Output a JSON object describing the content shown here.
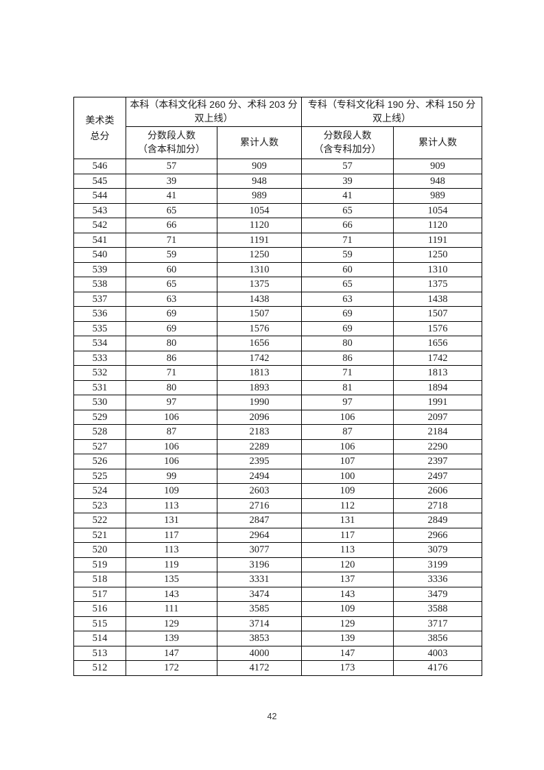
{
  "page": {
    "number": "42"
  },
  "table": {
    "header": {
      "category_line1": "美术类",
      "category_line2": "总分",
      "benke_group": "本科（本科文化科 260 分、术科 203 分双上线）",
      "zhuanke_group": "专科（专科文化科 190 分、术科 150 分双上线）",
      "segment_label": "分数段人数",
      "benke_segment_note": "（含本科加分）",
      "zhuanke_segment_note": "（含专科加分）",
      "cumulative_label": "累计人数"
    },
    "columns": [
      "美术类总分",
      "分数段人数（含本科加分）",
      "累计人数",
      "分数段人数（含专科加分）",
      "累计人数"
    ],
    "rows": [
      [
        546,
        57,
        909,
        57,
        909
      ],
      [
        545,
        39,
        948,
        39,
        948
      ],
      [
        544,
        41,
        989,
        41,
        989
      ],
      [
        543,
        65,
        1054,
        65,
        1054
      ],
      [
        542,
        66,
        1120,
        66,
        1120
      ],
      [
        541,
        71,
        1191,
        71,
        1191
      ],
      [
        540,
        59,
        1250,
        59,
        1250
      ],
      [
        539,
        60,
        1310,
        60,
        1310
      ],
      [
        538,
        65,
        1375,
        65,
        1375
      ],
      [
        537,
        63,
        1438,
        63,
        1438
      ],
      [
        536,
        69,
        1507,
        69,
        1507
      ],
      [
        535,
        69,
        1576,
        69,
        1576
      ],
      [
        534,
        80,
        1656,
        80,
        1656
      ],
      [
        533,
        86,
        1742,
        86,
        1742
      ],
      [
        532,
        71,
        1813,
        71,
        1813
      ],
      [
        531,
        80,
        1893,
        81,
        1894
      ],
      [
        530,
        97,
        1990,
        97,
        1991
      ],
      [
        529,
        106,
        2096,
        106,
        2097
      ],
      [
        528,
        87,
        2183,
        87,
        2184
      ],
      [
        527,
        106,
        2289,
        106,
        2290
      ],
      [
        526,
        106,
        2395,
        107,
        2397
      ],
      [
        525,
        99,
        2494,
        100,
        2497
      ],
      [
        524,
        109,
        2603,
        109,
        2606
      ],
      [
        523,
        113,
        2716,
        112,
        2718
      ],
      [
        522,
        131,
        2847,
        131,
        2849
      ],
      [
        521,
        117,
        2964,
        117,
        2966
      ],
      [
        520,
        113,
        3077,
        113,
        3079
      ],
      [
        519,
        119,
        3196,
        120,
        3199
      ],
      [
        518,
        135,
        3331,
        137,
        3336
      ],
      [
        517,
        143,
        3474,
        143,
        3479
      ],
      [
        516,
        111,
        3585,
        109,
        3588
      ],
      [
        515,
        129,
        3714,
        129,
        3717
      ],
      [
        514,
        139,
        3853,
        139,
        3856
      ],
      [
        513,
        147,
        4000,
        147,
        4003
      ],
      [
        512,
        172,
        4172,
        173,
        4176
      ]
    ]
  }
}
